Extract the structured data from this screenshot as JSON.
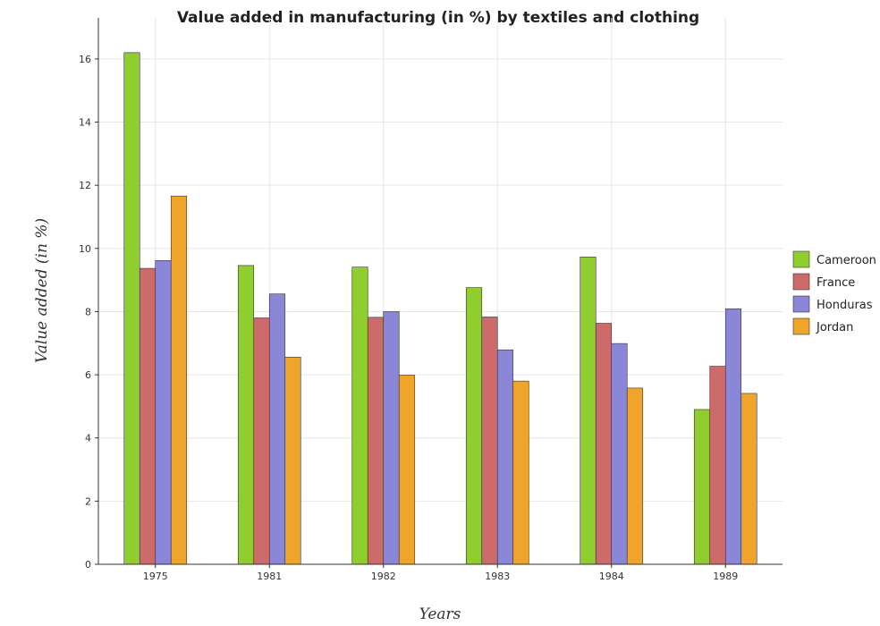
{
  "chart_data": {
    "type": "bar",
    "title": "Value added in manufacturing (in %) by textiles and clothing",
    "xlabel": "Years",
    "ylabel": "Value added (in %)",
    "categories": [
      "1975",
      "1981",
      "1982",
      "1983",
      "1984",
      "1989"
    ],
    "ylim": [
      0,
      17.3
    ],
    "yticks": [
      0,
      2,
      4,
      6,
      8,
      10,
      12,
      14,
      16
    ],
    "ytick_labels": [
      "0",
      "2",
      "4",
      "6",
      "8",
      "10",
      "12",
      "14",
      "16"
    ],
    "grid": true,
    "legend_position": "right",
    "series": [
      {
        "name": "Cameroon",
        "color": "#8fce2e",
        "values": [
          16.2,
          9.46,
          9.41,
          8.76,
          9.73,
          4.9
        ]
      },
      {
        "name": "France",
        "color": "#cd6a6a",
        "values": [
          9.37,
          7.8,
          7.82,
          7.83,
          7.63,
          6.27
        ]
      },
      {
        "name": "Honduras",
        "color": "#8a86d8",
        "values": [
          9.62,
          8.56,
          8.0,
          6.79,
          6.99,
          8.09
        ]
      },
      {
        "name": "Jordan",
        "color": "#f0a52a",
        "values": [
          11.66,
          6.56,
          5.99,
          5.8,
          5.58,
          5.41
        ]
      }
    ]
  }
}
